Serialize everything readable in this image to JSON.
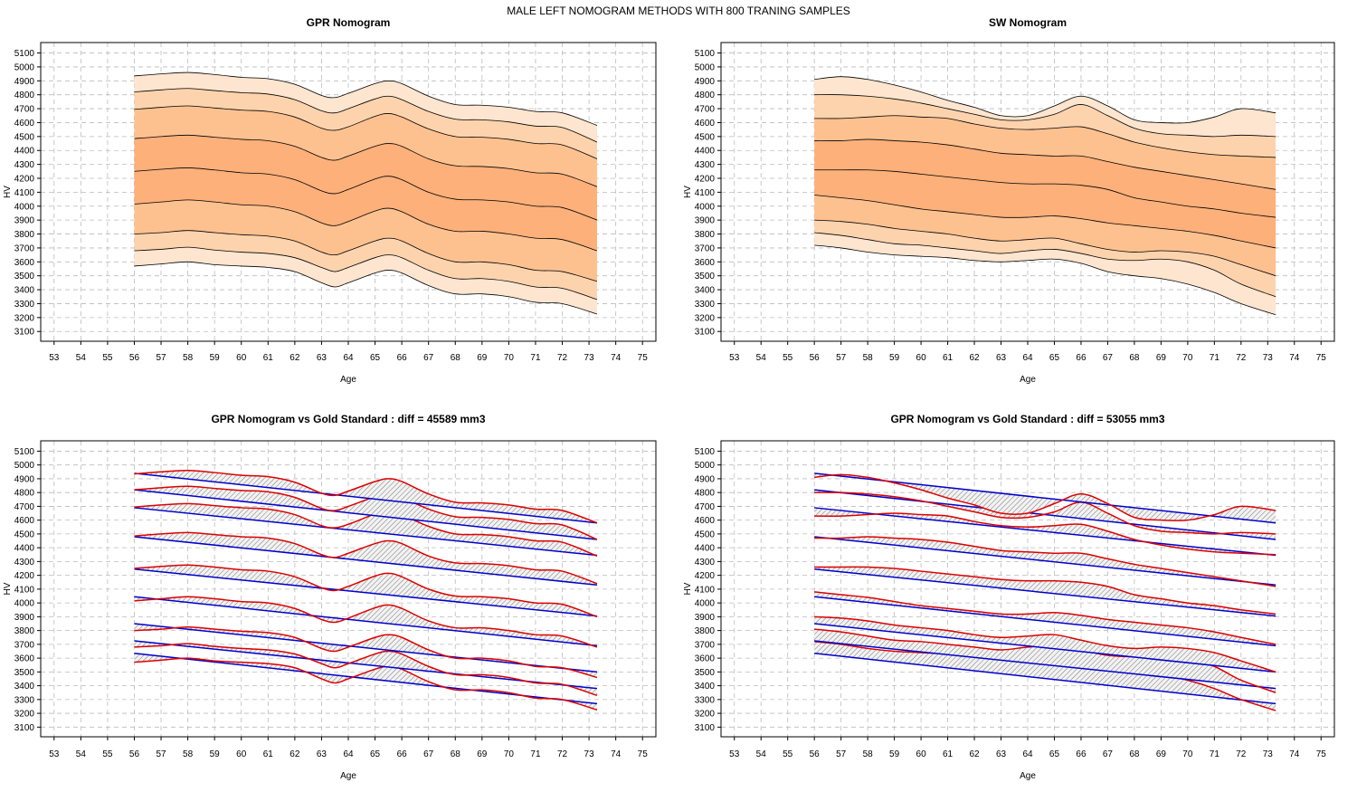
{
  "figure_title": "MALE LEFT NOMOGRAM METHODS WITH 800 TRANING SAMPLES",
  "axis": {
    "xlabel": "Age",
    "ylabel": "HV",
    "x_ticks": [
      53,
      54,
      55,
      56,
      57,
      58,
      59,
      60,
      61,
      62,
      63,
      64,
      65,
      66,
      67,
      68,
      69,
      70,
      71,
      72,
      73,
      74,
      75
    ],
    "y_ticks": [
      3100,
      3200,
      3300,
      3400,
      3500,
      3600,
      3700,
      3800,
      3900,
      4000,
      4100,
      4200,
      4300,
      4400,
      4500,
      4600,
      4700,
      4800,
      4900,
      5000,
      5100
    ],
    "xlim": [
      52.5,
      75.5
    ],
    "ylim": [
      3030,
      5175
    ]
  },
  "colors": {
    "band_outer": "#fde5cf",
    "band_2": "#fdd3ad",
    "band_3": "#fdc190",
    "band_inner": "#fdb07a",
    "curve_line": "#000000",
    "nomogram_line": "#dd0000",
    "gold_standard_line": "#0000cc",
    "diff_hatch": "#888888",
    "grid": "#bbbbbb"
  },
  "chart_data": [
    {
      "type": "area",
      "title": "GPR Nomogram",
      "xlabel": "Age",
      "ylabel": "HV",
      "xlim": [
        52.5,
        75.5
      ],
      "ylim": [
        3030,
        5175
      ],
      "x": [
        56,
        57,
        58,
        59,
        60,
        61,
        62,
        63,
        63.5,
        64,
        65,
        65.5,
        66,
        67,
        68,
        69,
        70,
        71,
        72,
        73.3
      ],
      "series": [
        {
          "values": [
            3570,
            3585,
            3600,
            3580,
            3570,
            3560,
            3530,
            3450,
            3420,
            3450,
            3520,
            3540,
            3520,
            3430,
            3370,
            3370,
            3350,
            3310,
            3300,
            3225
          ]
        },
        {
          "values": [
            3680,
            3690,
            3705,
            3685,
            3670,
            3660,
            3630,
            3560,
            3530,
            3560,
            3630,
            3650,
            3630,
            3540,
            3480,
            3480,
            3460,
            3420,
            3410,
            3330
          ]
        },
        {
          "values": [
            3800,
            3810,
            3825,
            3810,
            3795,
            3785,
            3750,
            3670,
            3650,
            3680,
            3750,
            3770,
            3750,
            3660,
            3600,
            3600,
            3580,
            3540,
            3530,
            3460
          ]
        },
        {
          "values": [
            4015,
            4030,
            4045,
            4030,
            4010,
            4000,
            3960,
            3880,
            3860,
            3890,
            3965,
            3985,
            3960,
            3870,
            3820,
            3820,
            3800,
            3770,
            3760,
            3680
          ]
        },
        {
          "values": [
            4250,
            4265,
            4275,
            4260,
            4240,
            4230,
            4190,
            4110,
            4090,
            4120,
            4195,
            4215,
            4190,
            4100,
            4050,
            4045,
            4030,
            4000,
            3990,
            3900
          ]
        },
        {
          "values": [
            4485,
            4500,
            4510,
            4495,
            4480,
            4470,
            4430,
            4350,
            4330,
            4360,
            4430,
            4450,
            4430,
            4340,
            4290,
            4285,
            4270,
            4240,
            4230,
            4140
          ]
        },
        {
          "values": [
            4695,
            4710,
            4720,
            4705,
            4690,
            4680,
            4640,
            4560,
            4545,
            4570,
            4645,
            4665,
            4640,
            4555,
            4500,
            4495,
            4480,
            4450,
            4440,
            4340
          ]
        },
        {
          "values": [
            4820,
            4835,
            4845,
            4830,
            4815,
            4805,
            4765,
            4685,
            4670,
            4700,
            4770,
            4790,
            4765,
            4680,
            4625,
            4620,
            4605,
            4575,
            4565,
            4460
          ]
        },
        {
          "values": [
            4935,
            4950,
            4960,
            4945,
            4925,
            4915,
            4875,
            4795,
            4780,
            4810,
            4880,
            4900,
            4880,
            4790,
            4730,
            4725,
            4710,
            4680,
            4670,
            4580
          ]
        }
      ]
    },
    {
      "type": "area",
      "title": "SW Nomogram",
      "xlabel": "Age",
      "ylabel": "HV",
      "xlim": [
        52.5,
        75.5
      ],
      "ylim": [
        3030,
        5175
      ],
      "x": [
        56,
        57,
        58,
        59,
        60,
        61,
        62,
        63,
        64,
        65,
        66,
        67,
        68,
        69,
        70,
        71,
        72,
        73.3
      ],
      "series": [
        {
          "values": [
            3720,
            3700,
            3670,
            3650,
            3640,
            3630,
            3610,
            3600,
            3610,
            3620,
            3590,
            3530,
            3500,
            3480,
            3440,
            3380,
            3300,
            3220
          ]
        },
        {
          "values": [
            3810,
            3790,
            3760,
            3730,
            3720,
            3700,
            3680,
            3660,
            3680,
            3690,
            3660,
            3620,
            3610,
            3620,
            3600,
            3540,
            3440,
            3350
          ]
        },
        {
          "values": [
            3900,
            3890,
            3870,
            3840,
            3820,
            3800,
            3770,
            3750,
            3760,
            3770,
            3730,
            3690,
            3670,
            3680,
            3670,
            3640,
            3580,
            3500
          ]
        },
        {
          "values": [
            4080,
            4060,
            4040,
            4010,
            3980,
            3960,
            3940,
            3920,
            3920,
            3930,
            3910,
            3880,
            3860,
            3840,
            3820,
            3790,
            3750,
            3700
          ]
        },
        {
          "values": [
            4260,
            4260,
            4260,
            4250,
            4230,
            4210,
            4190,
            4170,
            4160,
            4160,
            4150,
            4120,
            4060,
            4030,
            4000,
            3980,
            3950,
            3920
          ]
        },
        {
          "values": [
            4470,
            4470,
            4480,
            4470,
            4460,
            4440,
            4410,
            4380,
            4370,
            4360,
            4360,
            4320,
            4280,
            4250,
            4220,
            4190,
            4160,
            4120
          ]
        },
        {
          "values": [
            4630,
            4630,
            4640,
            4650,
            4640,
            4630,
            4590,
            4560,
            4550,
            4560,
            4570,
            4520,
            4460,
            4420,
            4390,
            4370,
            4360,
            4350
          ]
        },
        {
          "values": [
            4800,
            4800,
            4790,
            4770,
            4740,
            4700,
            4660,
            4620,
            4620,
            4660,
            4730,
            4650,
            4560,
            4520,
            4510,
            4500,
            4510,
            4500
          ]
        },
        {
          "values": [
            4910,
            4930,
            4910,
            4870,
            4820,
            4760,
            4710,
            4650,
            4650,
            4720,
            4790,
            4720,
            4620,
            4600,
            4600,
            4640,
            4700,
            4670
          ]
        }
      ]
    },
    {
      "type": "line",
      "title": "GPR Nomogram vs Gold Standard : diff = 45589 mm3",
      "xlabel": "Age",
      "ylabel": "HV",
      "xlim": [
        52.5,
        75.5
      ],
      "ylim": [
        3030,
        5175
      ],
      "nomogram_from_panel": 0,
      "gold_x": [
        56,
        73.3
      ],
      "gold_standard": [
        [
          3635,
          3270
        ],
        [
          3725,
          3380
        ],
        [
          3850,
          3500
        ],
        [
          4045,
          3690
        ],
        [
          4245,
          3905
        ],
        [
          4480,
          4130
        ],
        [
          4690,
          4345
        ],
        [
          4820,
          4460
        ],
        [
          4940,
          4580
        ]
      ]
    },
    {
      "type": "line",
      "title": "GPR Nomogram vs Gold Standard : diff = 53055 mm3",
      "xlabel": "Age",
      "ylabel": "HV",
      "xlim": [
        52.5,
        75.5
      ],
      "ylim": [
        3030,
        5175
      ],
      "nomogram_from_panel": 1,
      "gold_x": [
        56,
        73.3
      ],
      "gold_standard": [
        [
          3635,
          3270
        ],
        [
          3725,
          3380
        ],
        [
          3850,
          3500
        ],
        [
          4045,
          3690
        ],
        [
          4245,
          3905
        ],
        [
          4480,
          4130
        ],
        [
          4690,
          4345
        ],
        [
          4820,
          4460
        ],
        [
          4940,
          4580
        ]
      ]
    }
  ]
}
